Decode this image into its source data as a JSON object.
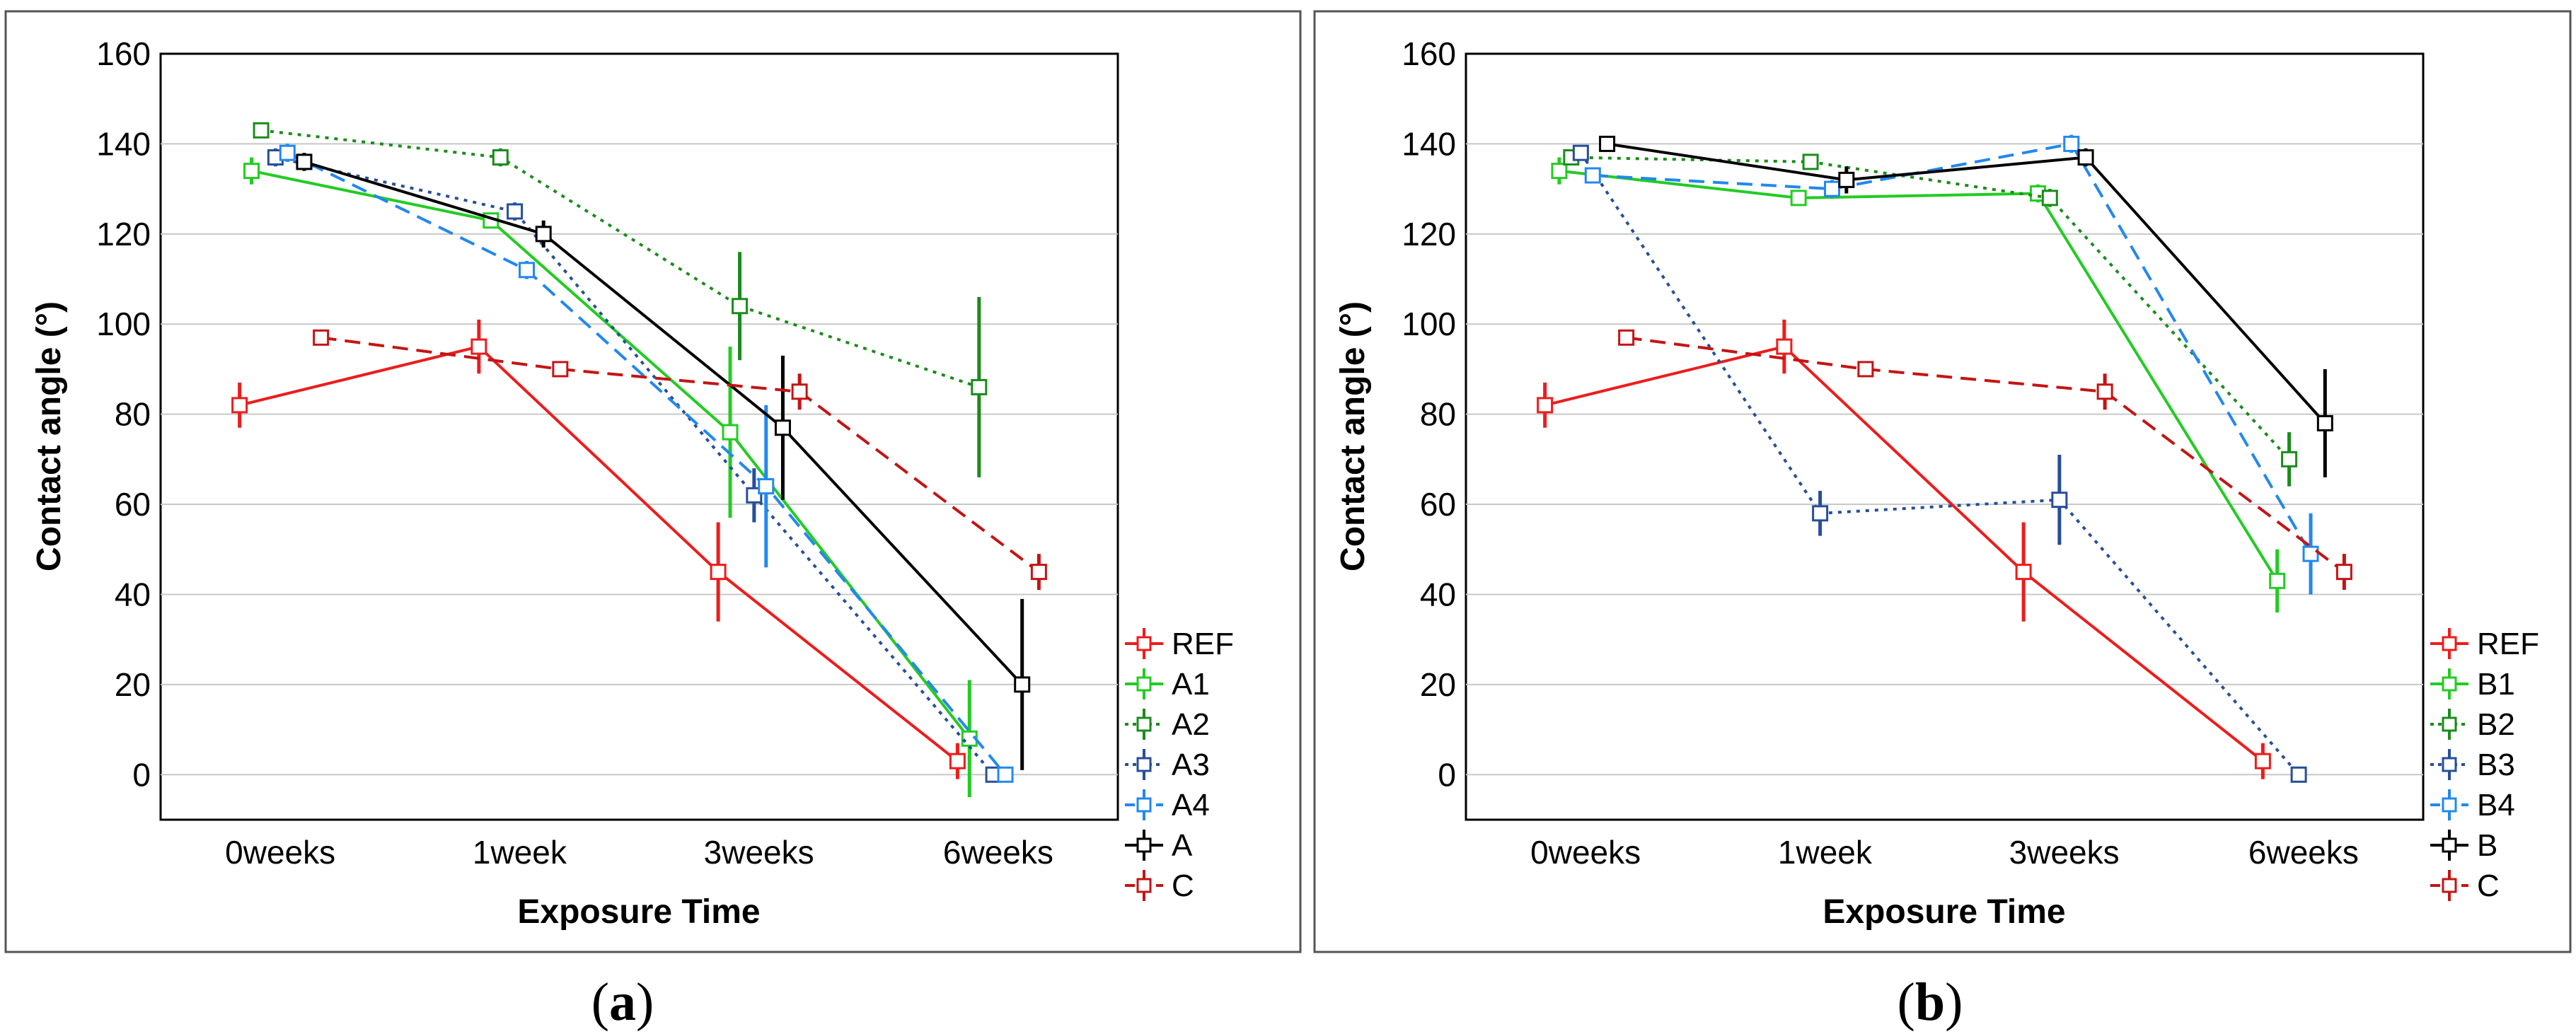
{
  "colors": {
    "REF": "#ee1c1c",
    "A1": "#22cc22",
    "A2": "#1a8c1a",
    "A3": "#274e9a",
    "A4": "#2288ee",
    "A": "#000000",
    "C": "#c41414",
    "B1": "#22cc22",
    "B2": "#1a8c1a",
    "B3": "#274e9a",
    "B4": "#2288ee",
    "B": "#000000"
  },
  "chart_data": [
    {
      "type": "line",
      "caption": "(a)",
      "caption_letter": "a",
      "xlabel": "Exposure Time",
      "ylabel": "Contact angle (°)",
      "categories": [
        "0weeks",
        "1week",
        "3weeks",
        "6weeks"
      ],
      "ylim": [
        -10,
        160
      ],
      "yticks": [
        "0",
        "20",
        "40",
        "60",
        "80",
        "100",
        "120",
        "140",
        "160"
      ],
      "grid": true,
      "legend_position": "right",
      "series": [
        {
          "name": "REF",
          "style": "solid",
          "values": [
            82,
            95,
            45,
            3
          ],
          "errors": [
            5,
            6,
            11,
            4
          ],
          "offset": -0.17
        },
        {
          "name": "A1",
          "style": "solid",
          "values": [
            134,
            123,
            76,
            8
          ],
          "errors": [
            3,
            0,
            19,
            13
          ],
          "offset": -0.12
        },
        {
          "name": "A2",
          "style": "dotted",
          "values": [
            143,
            137,
            104,
            86
          ],
          "errors": [
            1,
            2,
            12,
            20
          ],
          "offset": -0.08
        },
        {
          "name": "A3",
          "style": "dotted",
          "values": [
            137,
            125,
            62,
            0
          ],
          "errors": [
            2,
            2,
            6,
            0
          ],
          "offset": -0.02
        },
        {
          "name": "A4",
          "style": "dashed",
          "values": [
            138,
            112,
            64,
            0
          ],
          "errors": [
            2,
            2,
            18,
            0
          ],
          "offset": 0.03
        },
        {
          "name": "A",
          "style": "solid",
          "values": [
            136,
            120,
            77,
            20
          ],
          "errors": [
            2,
            3,
            16,
            19
          ],
          "offset": 0.1
        },
        {
          "name": "C",
          "style": "dashed",
          "values": [
            97,
            90,
            85,
            45
          ],
          "errors": [
            1,
            1,
            4,
            4
          ],
          "offset": 0.17
        }
      ]
    },
    {
      "type": "line",
      "caption": "(b)",
      "caption_letter": "b",
      "xlabel": "Exposure Time",
      "ylabel": "Contact angle (°)",
      "categories": [
        "0weeks",
        "1week",
        "3weeks",
        "6weeks"
      ],
      "ylim": [
        -10,
        160
      ],
      "yticks": [
        "0",
        "20",
        "40",
        "60",
        "80",
        "100",
        "120",
        "140",
        "160"
      ],
      "grid": true,
      "legend_position": "right",
      "series": [
        {
          "name": "REF",
          "style": "solid",
          "values": [
            82,
            95,
            45,
            3
          ],
          "errors": [
            5,
            6,
            11,
            4
          ],
          "offset": -0.17
        },
        {
          "name": "B1",
          "style": "solid",
          "values": [
            134,
            128,
            129,
            43
          ],
          "errors": [
            3,
            1,
            2,
            7
          ],
          "offset": -0.11
        },
        {
          "name": "B2",
          "style": "dotted",
          "values": [
            137,
            136,
            128,
            70
          ],
          "errors": [
            1,
            1,
            2,
            6
          ],
          "offset": -0.06
        },
        {
          "name": "B3",
          "style": "dotted",
          "values": [
            138,
            58,
            61,
            0
          ],
          "errors": [
            1,
            5,
            10,
            0
          ],
          "offset": -0.02
        },
        {
          "name": "B4",
          "style": "dashed",
          "values": [
            133,
            130,
            140,
            49
          ],
          "errors": [
            1,
            2,
            2,
            9
          ],
          "offset": 0.03
        },
        {
          "name": "B",
          "style": "solid",
          "values": [
            140,
            132,
            137,
            78
          ],
          "errors": [
            1,
            3,
            2,
            12
          ],
          "offset": 0.09
        },
        {
          "name": "C",
          "style": "dashed",
          "values": [
            97,
            90,
            85,
            45
          ],
          "errors": [
            1,
            1,
            4,
            4
          ],
          "offset": 0.17
        }
      ]
    }
  ]
}
